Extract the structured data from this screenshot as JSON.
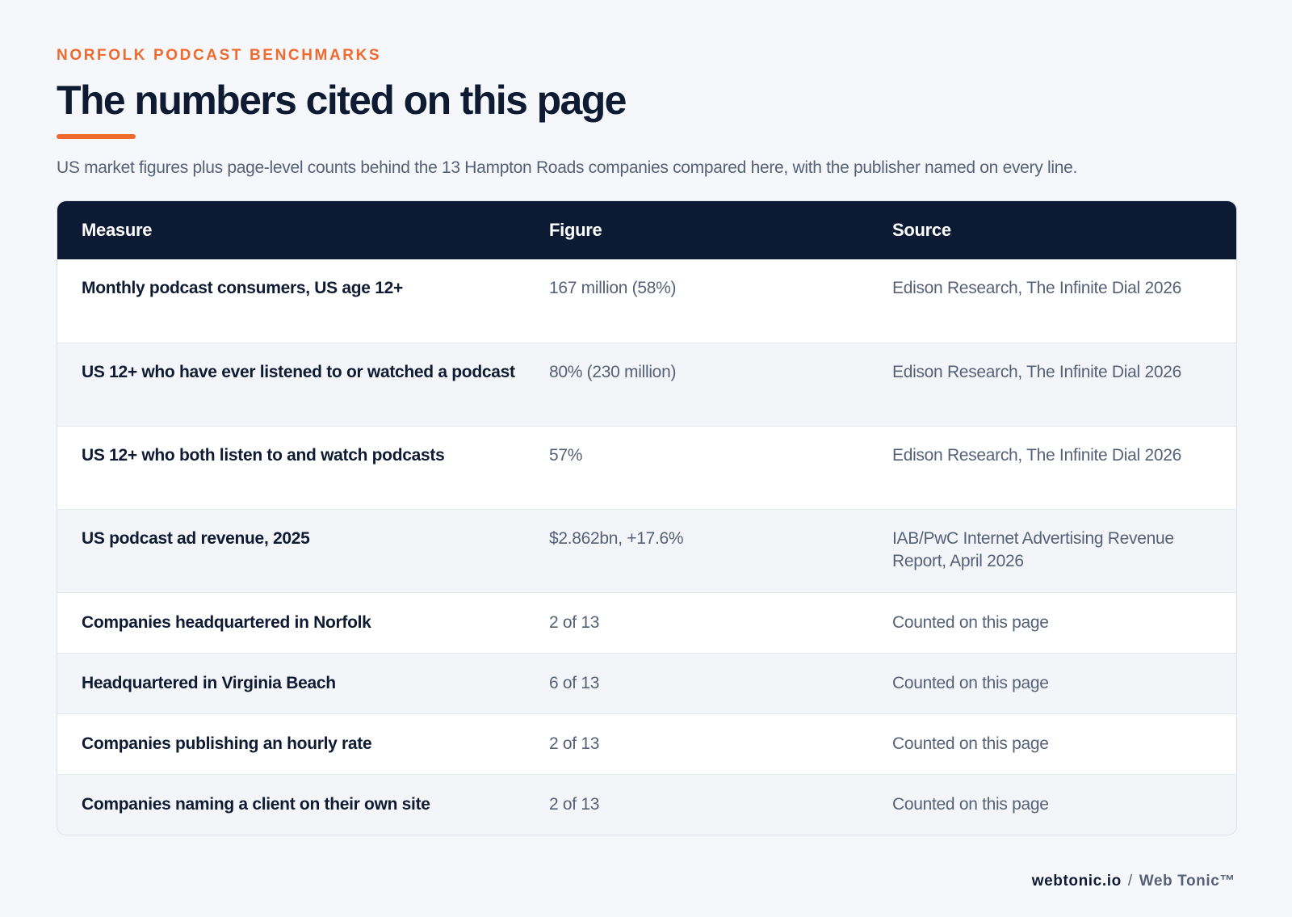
{
  "header": {
    "eyebrow": "NORFOLK PODCAST BENCHMARKS",
    "title": "The numbers cited on this page",
    "subtitle": "US market figures plus page-level counts behind the 13 Hampton Roads companies compared here, with the publisher named on every line."
  },
  "table": {
    "columns": [
      "Measure",
      "Figure",
      "Source"
    ],
    "rows": [
      {
        "measure": "Monthly podcast consumers, US age 12+",
        "figure": "167 million (58%)",
        "source": "Edison Research, The Infinite Dial 2026"
      },
      {
        "measure": "US 12+ who have ever listened to or watched a podcast",
        "figure": "80% (230 million)",
        "source": "Edison Research, The Infinite Dial 2026"
      },
      {
        "measure": "US 12+ who both listen to and watch podcasts",
        "figure": "57%",
        "source": "Edison Research, The Infinite Dial 2026"
      },
      {
        "measure": "US podcast ad revenue, 2025",
        "figure": "$2.862bn, +17.6%",
        "source": "IAB/PwC Internet Advertising Revenue Report, April 2026"
      },
      {
        "measure": "Companies headquartered in Norfolk",
        "figure": "2 of 13",
        "source": "Counted on this page"
      },
      {
        "measure": "Headquartered in Virginia Beach",
        "figure": "6 of 13",
        "source": "Counted on this page"
      },
      {
        "measure": "Companies publishing an hourly rate",
        "figure": "2 of 13",
        "source": "Counted on this page"
      },
      {
        "measure": "Companies naming a client on their own site",
        "figure": "2 of 13",
        "source": "Counted on this page"
      }
    ]
  },
  "footer": {
    "domain": "webtonic.io",
    "separator": "/",
    "brand": "Web Tonic™"
  },
  "colors": {
    "accent": "#ef6a2e",
    "header_bg": "#0c1a33",
    "page_bg": "#f5f7fa"
  }
}
